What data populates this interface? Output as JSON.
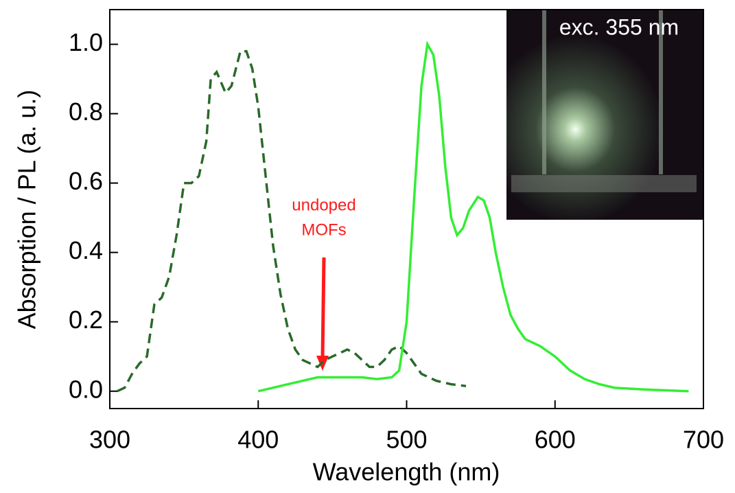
{
  "chart_data": {
    "type": "line",
    "x_label": "Wavelength (nm)",
    "y_label": "Absorption / PL (a. u.)",
    "xlim": [
      300,
      700
    ],
    "xticks": [
      300,
      400,
      500,
      600,
      700
    ],
    "ylim": [
      -0.05,
      1.1
    ],
    "yticks": [
      {
        "value": 0,
        "label": "0.0"
      },
      0.2,
      0.4,
      0.6,
      0.8,
      {
        "value": 1,
        "label": "1.0"
      }
    ],
    "annotation": [
      "undoped",
      "MOFs"
    ],
    "inset_label": "exc. 355 nm",
    "series": [
      {
        "color": "#2a6a2a",
        "dash": true,
        "x": [
          305,
          310,
          315,
          320,
          325,
          330,
          335,
          340,
          345,
          350,
          355,
          360,
          365,
          368,
          372,
          378,
          382,
          388,
          392,
          396,
          400,
          405,
          410,
          415,
          420,
          425,
          430,
          435,
          440,
          445,
          450,
          455,
          460,
          465,
          470,
          475,
          480,
          485,
          490,
          495,
          500,
          505,
          510,
          515,
          520,
          530,
          540
        ],
        "values": [
          0.0,
          0.01,
          0.05,
          0.08,
          0.1,
          0.25,
          0.27,
          0.33,
          0.45,
          0.6,
          0.6,
          0.62,
          0.72,
          0.9,
          0.92,
          0.86,
          0.88,
          0.98,
          0.98,
          0.93,
          0.82,
          0.62,
          0.42,
          0.28,
          0.18,
          0.12,
          0.09,
          0.08,
          0.07,
          0.09,
          0.1,
          0.11,
          0.12,
          0.11,
          0.09,
          0.07,
          0.07,
          0.09,
          0.12,
          0.13,
          0.11,
          0.08,
          0.05,
          0.04,
          0.03,
          0.02,
          0.015
        ]
      },
      {
        "color": "#33ee33",
        "dash": false,
        "x": [
          400,
          410,
          420,
          430,
          440,
          450,
          460,
          470,
          480,
          490,
          495,
          500,
          505,
          510,
          514,
          518,
          522,
          526,
          530,
          534,
          538,
          542,
          548,
          552,
          556,
          560,
          565,
          570,
          575,
          580,
          590,
          600,
          610,
          620,
          630,
          640,
          660,
          690
        ],
        "values": [
          0.0,
          0.01,
          0.02,
          0.03,
          0.04,
          0.04,
          0.04,
          0.04,
          0.035,
          0.04,
          0.06,
          0.2,
          0.55,
          0.88,
          1.0,
          0.97,
          0.85,
          0.65,
          0.5,
          0.45,
          0.47,
          0.52,
          0.56,
          0.55,
          0.5,
          0.4,
          0.3,
          0.22,
          0.18,
          0.15,
          0.13,
          0.1,
          0.06,
          0.035,
          0.02,
          0.01,
          0.005,
          0.0
        ]
      }
    ]
  }
}
